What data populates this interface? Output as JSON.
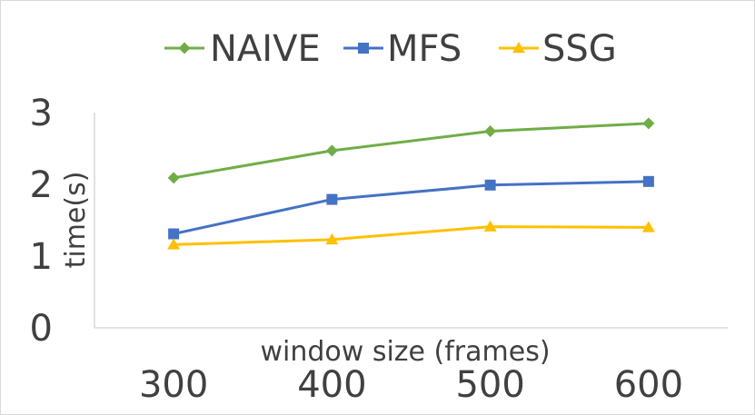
{
  "chart_data": {
    "type": "line",
    "title": "",
    "xlabel": "window size (frames)",
    "ylabel": "time(s)",
    "categories": [
      "300",
      "400",
      "500",
      "600"
    ],
    "ylim": [
      0,
      3
    ],
    "yticks": [
      "0",
      "1",
      "2",
      "3"
    ],
    "grid": false,
    "legend_position": "top",
    "series": [
      {
        "name": "NAIVE",
        "values": [
          2.09,
          2.47,
          2.74,
          2.85
        ],
        "color": "#70ad47",
        "marker": "diamond"
      },
      {
        "name": "MFS",
        "values": [
          1.31,
          1.79,
          1.99,
          2.04
        ],
        "color": "#4472c4",
        "marker": "square"
      },
      {
        "name": "SSG",
        "values": [
          1.16,
          1.23,
          1.41,
          1.4
        ],
        "color": "#ffc000",
        "marker": "triangle"
      }
    ]
  }
}
